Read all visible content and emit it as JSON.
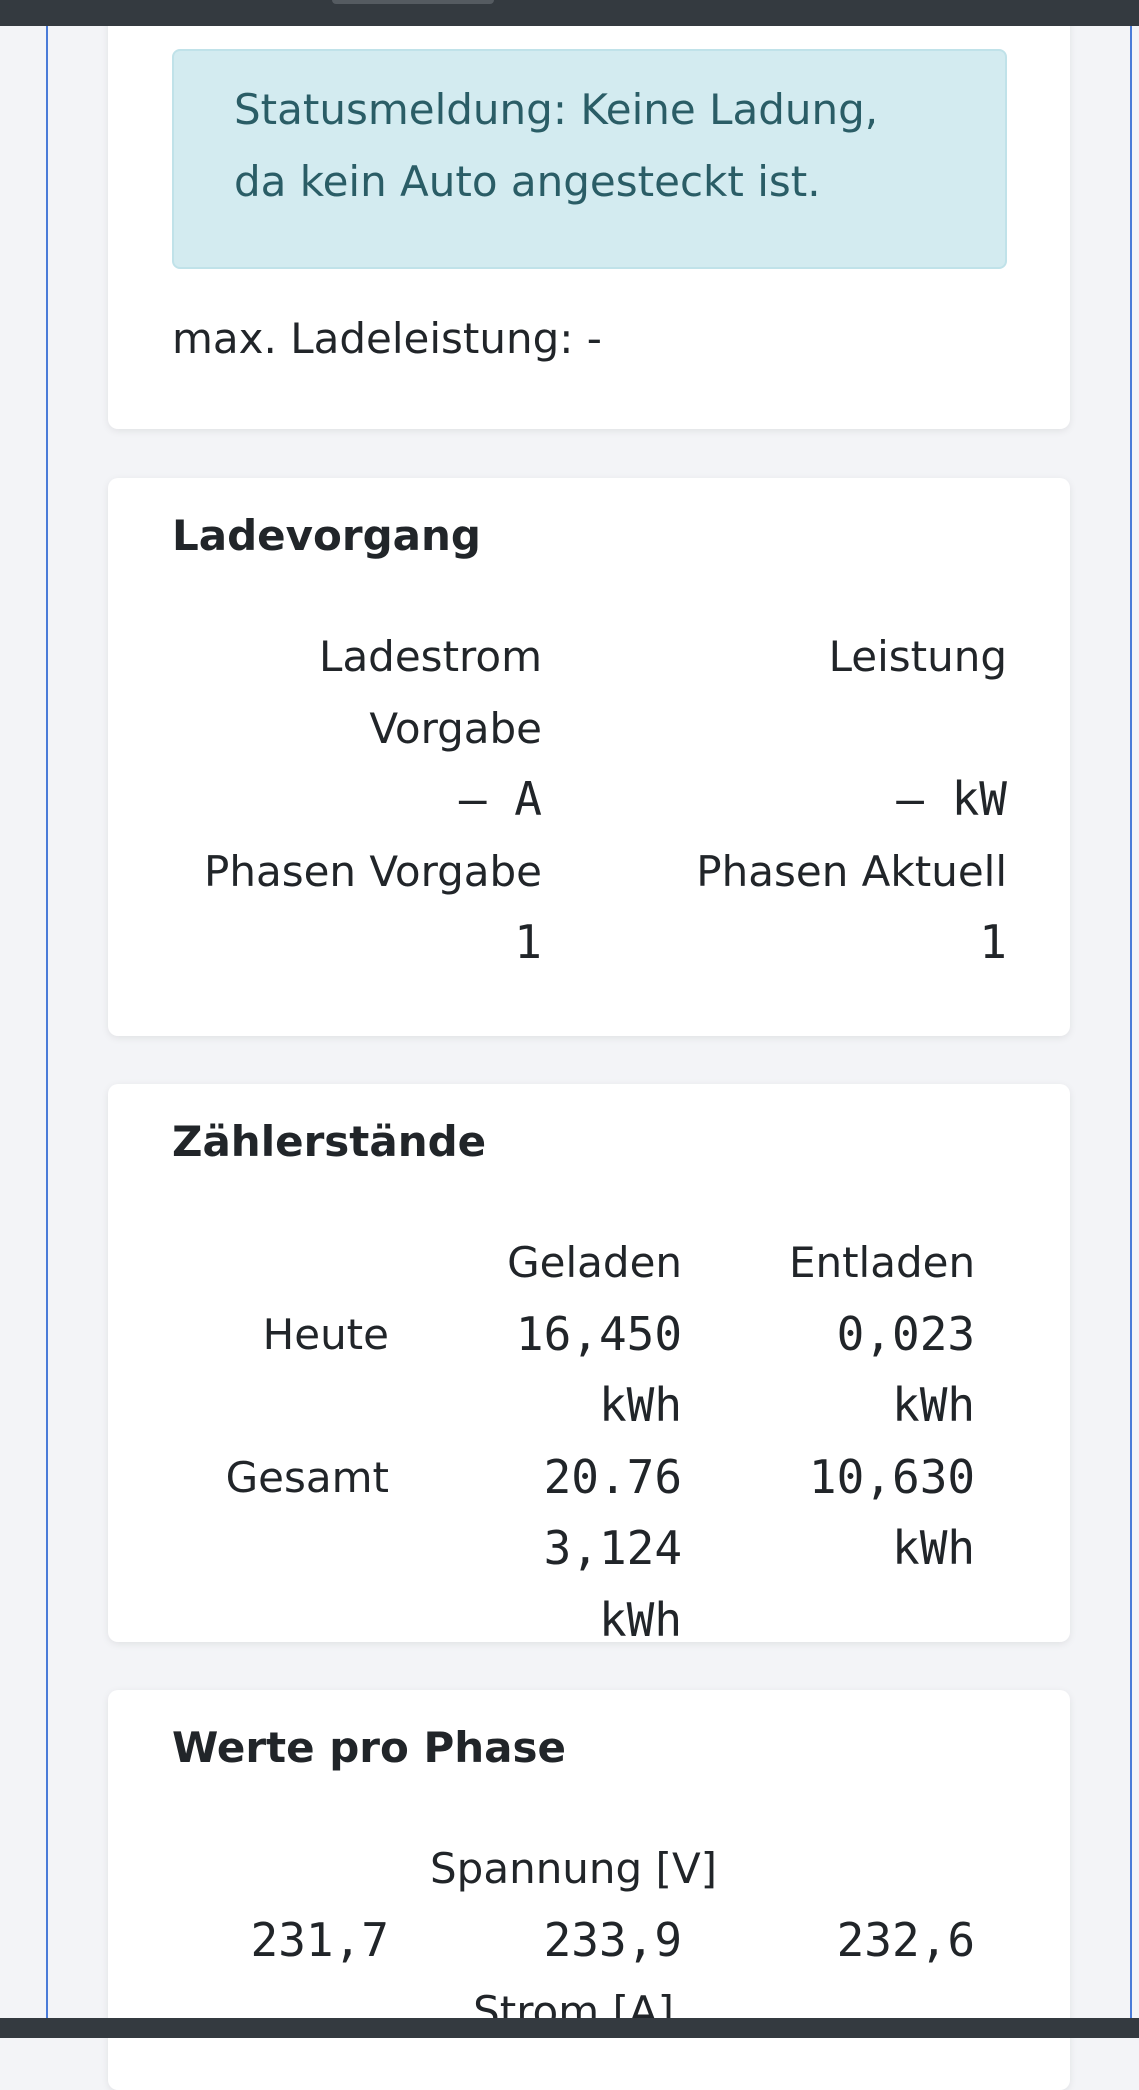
{
  "status_alert": "Statusmeldung: Keine Ladung, da kein Auto angesteckt ist.",
  "max_power": "max. Ladeleistung: -",
  "charging": {
    "title": "Ladevorgang",
    "fields": [
      {
        "label": "Ladestrom Vorgabe",
        "value": "– A"
      },
      {
        "label": "Leistung",
        "value": "– kW"
      },
      {
        "label": "Phasen Vorgabe",
        "value": "1"
      },
      {
        "label": "Phasen Aktuell",
        "value": "1"
      }
    ]
  },
  "meters": {
    "title": "Zählerstände",
    "columns": [
      "Geladen",
      "Entladen"
    ],
    "rows": [
      {
        "label": "Heute",
        "values": [
          "16,450 kWh",
          "0,023 kWh"
        ]
      },
      {
        "label": "Gesamt",
        "values": [
          "20.763,124 kWh",
          "10,630 kWh"
        ]
      }
    ]
  },
  "phases": {
    "title": "Werte pro Phase",
    "sections": [
      {
        "label": "Spannung [V]",
        "values": [
          "231,7",
          "233,9",
          "232,6"
        ]
      },
      {
        "label": "Strom [A]"
      }
    ]
  }
}
